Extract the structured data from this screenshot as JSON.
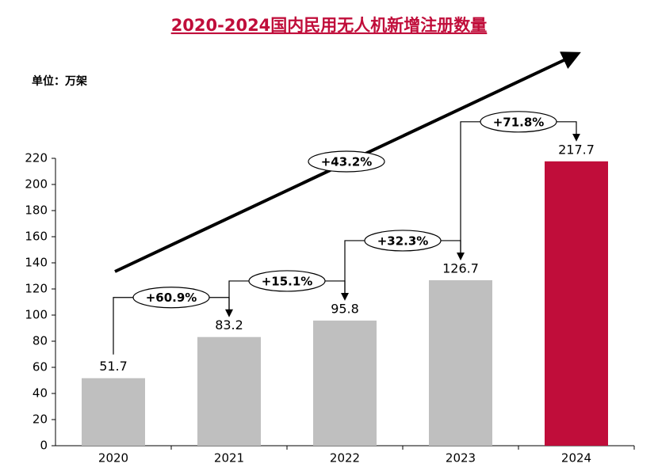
{
  "chart_data": {
    "type": "bar",
    "title": "2020-2024国内民用无人机新增注册数量",
    "unit": "单位：万架",
    "categories": [
      "2020",
      "2021",
      "2022",
      "2023",
      "2024"
    ],
    "values": [
      51.7,
      83.2,
      95.8,
      126.7,
      217.7
    ],
    "colors": [
      "#bfbfbf",
      "#bfbfbf",
      "#bfbfbf",
      "#bfbfbf",
      "#c00d3a"
    ],
    "ylim": [
      0,
      220
    ],
    "yticks": [
      0,
      20,
      40,
      60,
      80,
      100,
      120,
      140,
      160,
      180,
      200,
      220
    ],
    "growth_labels": [
      "+60.9%",
      "+15.1%",
      "+32.3%",
      "+71.8%"
    ],
    "overall_growth_label": "+43.2%"
  }
}
